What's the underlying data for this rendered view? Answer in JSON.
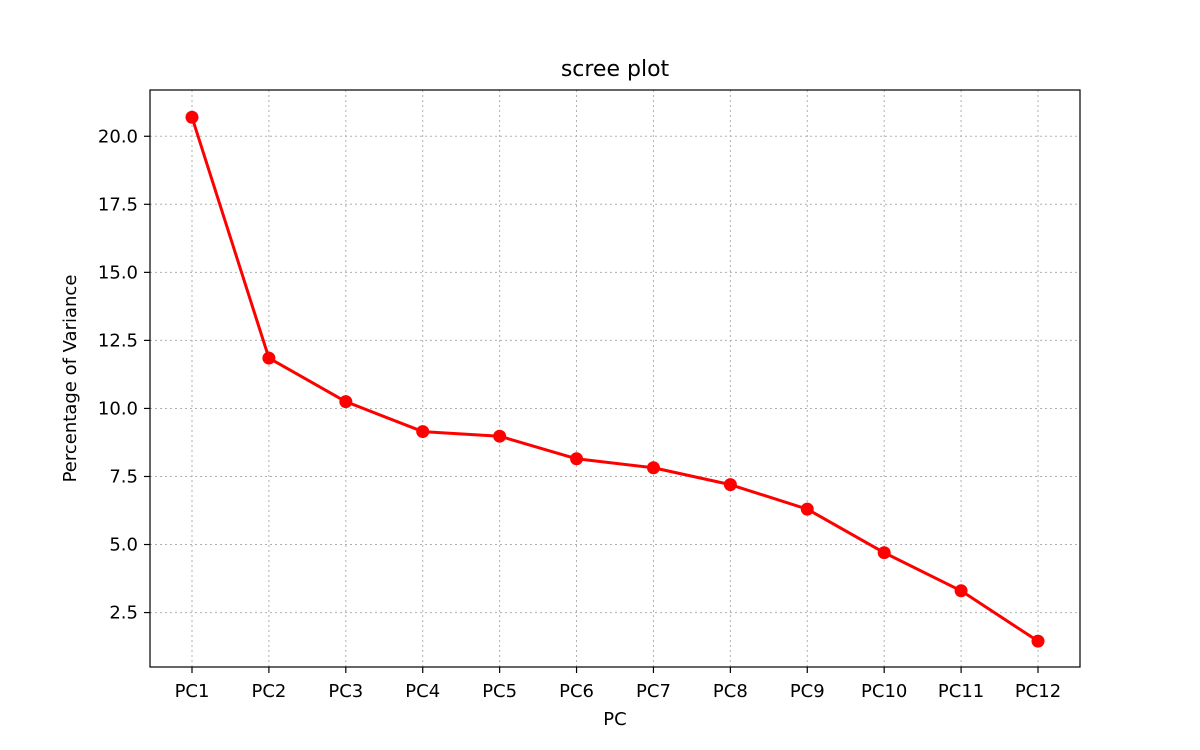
{
  "chart_data": {
    "type": "line",
    "title": "scree plot",
    "xlabel": "PC",
    "ylabel": "Percentage of Variance",
    "categories": [
      "PC1",
      "PC2",
      "PC3",
      "PC4",
      "PC5",
      "PC6",
      "PC7",
      "PC8",
      "PC9",
      "PC10",
      "PC11",
      "PC12"
    ],
    "series": [
      {
        "values": [
          20.7,
          11.85,
          10.25,
          9.15,
          8.98,
          8.15,
          7.82,
          7.2,
          6.3,
          4.7,
          3.3,
          1.45
        ]
      }
    ],
    "yticks": [
      "2.5",
      "5.0",
      "7.5",
      "10.0",
      "12.5",
      "15.0",
      "17.5",
      "20.0"
    ],
    "ylim": [
      0.5,
      21.7
    ],
    "grid": true,
    "color": "#ff0000"
  }
}
